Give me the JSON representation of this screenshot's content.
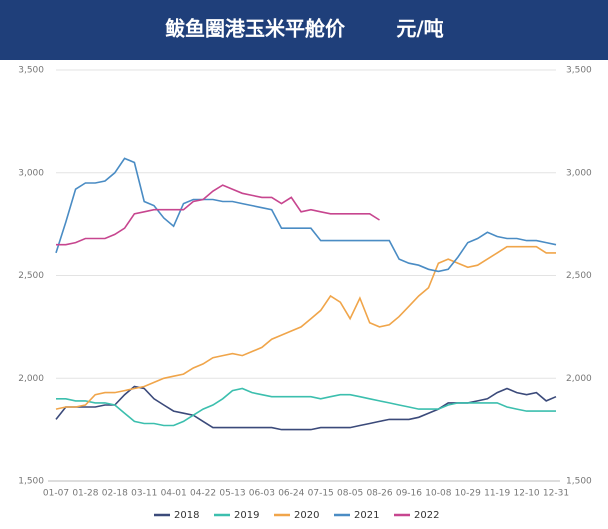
{
  "chart_data": {
    "type": "line",
    "title": "鲅鱼圈港玉米平舱价",
    "unit": "元/吨",
    "categories": [
      "01-07",
      null,
      null,
      "01-28",
      null,
      null,
      "02-18",
      null,
      null,
      "03-11",
      null,
      null,
      "04-01",
      null,
      null,
      "04-22",
      null,
      null,
      "05-13",
      null,
      null,
      "06-03",
      null,
      null,
      "06-24",
      null,
      null,
      "07-15",
      null,
      null,
      "08-05",
      null,
      null,
      "08-26",
      null,
      null,
      "09-16",
      null,
      null,
      "10-08",
      null,
      null,
      "10-29",
      null,
      null,
      "11-19",
      null,
      null,
      "12-10",
      null,
      null,
      "12-31"
    ],
    "ylim": [
      1500,
      3500
    ],
    "yticks": [
      {
        "value": 1500,
        "label": "1,500"
      },
      {
        "value": 2000,
        "label": "2,000"
      },
      {
        "value": 2500,
        "label": "2,500"
      },
      {
        "value": 3000,
        "label": "3,000"
      },
      {
        "value": 3500,
        "label": "3,500"
      }
    ],
    "y2lim": [
      1500,
      3500
    ],
    "y2ticks": [
      {
        "value": 1500,
        "label": "1,500"
      },
      {
        "value": 2000,
        "label": "2,000"
      },
      {
        "value": 2500,
        "label": "2,500"
      },
      {
        "value": 3000,
        "label": "3,000"
      },
      {
        "value": 3500,
        "label": "3,500"
      }
    ],
    "grid": true,
    "legend": "bottom",
    "series": [
      {
        "name": "2018",
        "color": "#3b4a7a",
        "values": [
          1800,
          1860,
          1860,
          1860,
          1860,
          1870,
          1870,
          1920,
          1960,
          1950,
          1900,
          1870,
          1840,
          1830,
          1820,
          1790,
          1760,
          1760,
          1760,
          1760,
          1760,
          1760,
          1760,
          1750,
          1750,
          1750,
          1750,
          1760,
          1760,
          1760,
          1760,
          1770,
          1780,
          1790,
          1800,
          1800,
          1800,
          1810,
          1830,
          1850,
          1880,
          1880,
          1880,
          1890,
          1900,
          1930,
          1950,
          1930,
          1920,
          1930,
          1890,
          1910
        ]
      },
      {
        "name": "2019",
        "color": "#3cbfae",
        "values": [
          1900,
          1900,
          1890,
          1890,
          1880,
          1880,
          1870,
          1830,
          1790,
          1780,
          1780,
          1770,
          1770,
          1790,
          1820,
          1850,
          1870,
          1900,
          1940,
          1950,
          1930,
          1920,
          1910,
          1910,
          1910,
          1910,
          1910,
          1900,
          1910,
          1920,
          1920,
          1910,
          1900,
          1890,
          1880,
          1870,
          1860,
          1850,
          1850,
          1850,
          1870,
          1880,
          1880,
          1880,
          1880,
          1880,
          1860,
          1850,
          1840,
          1840,
          1840,
          1840
        ]
      },
      {
        "name": "2020",
        "color": "#f0a54a",
        "values": [
          1850,
          1860,
          1860,
          1870,
          1920,
          1930,
          1930,
          1940,
          1950,
          1960,
          1980,
          2000,
          2010,
          2020,
          2050,
          2070,
          2100,
          2110,
          2120,
          2110,
          2130,
          2150,
          2190,
          2210,
          2230,
          2250,
          2290,
          2330,
          2400,
          2370,
          2290,
          2390,
          2270,
          2250,
          2260,
          2300,
          2350,
          2400,
          2440,
          2560,
          2580,
          2560,
          2540,
          2550,
          2580,
          2610,
          2640,
          2640,
          2640,
          2640,
          2610,
          2610
        ]
      },
      {
        "name": "2021",
        "color": "#4a8cc4",
        "values": [
          2610,
          2760,
          2920,
          2950,
          2950,
          2960,
          3000,
          3070,
          3050,
          2860,
          2840,
          2780,
          2740,
          2850,
          2870,
          2870,
          2870,
          2860,
          2860,
          2850,
          2840,
          2830,
          2820,
          2730,
          2730,
          2730,
          2730,
          2670,
          2670,
          2670,
          2670,
          2670,
          2670,
          2670,
          2670,
          2580,
          2560,
          2550,
          2530,
          2520,
          2530,
          2590,
          2660,
          2680,
          2710,
          2690,
          2680,
          2680,
          2670,
          2670,
          2660,
          2650
        ]
      },
      {
        "name": "2022",
        "color": "#c7468f",
        "values": [
          2650,
          2650,
          2660,
          2680,
          2680,
          2680,
          2700,
          2730,
          2800,
          2810,
          2820,
          2820,
          2820,
          2820,
          2860,
          2870,
          2910,
          2940,
          2920,
          2900,
          2890,
          2880,
          2880,
          2850,
          2880,
          2810,
          2820,
          2810,
          2800,
          2800,
          2800,
          2800,
          2800,
          2770,
          null,
          null,
          null,
          null,
          null,
          null,
          null,
          null,
          null,
          null,
          null,
          null,
          null,
          null,
          null,
          null,
          null,
          null
        ]
      }
    ]
  }
}
